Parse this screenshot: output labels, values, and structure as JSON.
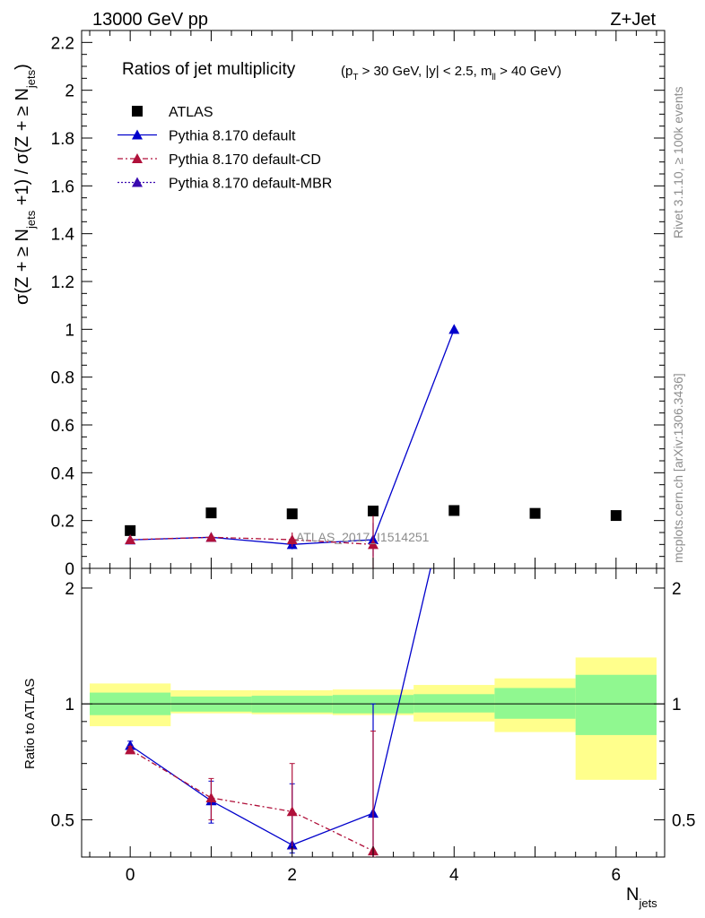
{
  "header": {
    "left": "13000 GeV pp",
    "right": "Z+Jet"
  },
  "side_text": {
    "rivet": "Rivet 3.1.10, ≥ 100k events",
    "mcplots": "mcplots.cern.ch [arXiv:1306.3436]"
  },
  "title": {
    "main": "Ratios of jet multiplicity",
    "cuts": "(p_T > 30 GeV, |y| < 2.5, m_ll > 40 GeV)"
  },
  "watermark": "ATLAS_2017_I1514251",
  "chart_data": [
    {
      "type": "scatter",
      "panel": "main",
      "ylabel": "σ(Z + ≥ N_jets +1) / σ(Z + ≥ N_jets)",
      "ylim": [
        0,
        2.25
      ],
      "xlim": [
        -0.6,
        6.6
      ],
      "yticks": [
        "0",
        "0.2",
        "0.4",
        "0.6",
        "0.8",
        "1",
        "1.2",
        "1.4",
        "1.6",
        "1.8",
        "2",
        "2.2"
      ],
      "legend_position": "top-left",
      "series": [
        {
          "name": "ATLAS",
          "color": "#000000",
          "marker": "square",
          "x": [
            0,
            1,
            2,
            3,
            4,
            5,
            6
          ],
          "y": [
            0.158,
            0.232,
            0.228,
            0.24,
            0.242,
            0.23,
            0.221
          ]
        },
        {
          "name": "Pythia 8.170 default",
          "color": "#0000cc",
          "line": "solid",
          "marker": "triangle",
          "x": [
            0,
            1,
            2,
            3,
            4
          ],
          "y": [
            0.119,
            0.13,
            0.1,
            0.12,
            1.0
          ],
          "yerr": [
            0.005,
            0.005,
            0.02,
            0.07,
            0.0
          ]
        },
        {
          "name": "Pythia 8.170 default-CD",
          "color": "#b0103a",
          "line": "dashdot",
          "marker": "triangle",
          "x": [
            0,
            1,
            2,
            3
          ],
          "y": [
            0.12,
            0.13,
            0.12,
            0.1
          ],
          "yerr": [
            0.005,
            0.01,
            0.03,
            0.12
          ]
        },
        {
          "name": "Pythia 8.170 default-MBR",
          "color": "#3a0ab0",
          "line": "dotted",
          "marker": "triangle",
          "x": [],
          "y": []
        }
      ]
    },
    {
      "type": "line",
      "panel": "ratio",
      "ylabel": "Ratio to ATLAS",
      "xlabel": "N_jets",
      "ylim": [
        0.4,
        2.25
      ],
      "log_y": true,
      "xticks": [
        "0",
        "2",
        "4",
        "6"
      ],
      "yticks": [
        "0.5",
        "1",
        "2"
      ],
      "bands": {
        "x_edges": [
          -0.5,
          0.5,
          1.5,
          2.5,
          3.5,
          4.5,
          5.5,
          6.5
        ],
        "green_low": [
          0.935,
          0.955,
          0.95,
          0.945,
          0.95,
          0.915,
          0.83
        ],
        "green_high": [
          1.07,
          1.045,
          1.05,
          1.055,
          1.06,
          1.1,
          1.19
        ],
        "yellow_low": [
          0.875,
          0.945,
          0.94,
          0.935,
          0.9,
          0.845,
          0.635
        ],
        "yellow_high": [
          1.13,
          1.085,
          1.085,
          1.09,
          1.12,
          1.165,
          1.32
        ]
      },
      "series": [
        {
          "name": "Pythia 8.170 default",
          "color": "#0000cc",
          "x": [
            0,
            1,
            2,
            3,
            4
          ],
          "y": [
            0.78,
            0.56,
            0.43,
            0.52,
            4.1
          ],
          "err_low": [
            0.76,
            0.49,
            0.41,
            0.3,
            4.1
          ],
          "err_high": [
            0.8,
            0.63,
            0.62,
            1.0,
            4.1
          ]
        },
        {
          "name": "Pythia 8.170 default-CD",
          "color": "#b0103a",
          "x": [
            0,
            1,
            2,
            3
          ],
          "y": [
            0.76,
            0.57,
            0.525,
            0.415
          ],
          "err_low": [
            0.745,
            0.5,
            0.42,
            0.4
          ],
          "err_high": [
            0.775,
            0.64,
            0.7,
            0.85
          ]
        }
      ]
    }
  ]
}
